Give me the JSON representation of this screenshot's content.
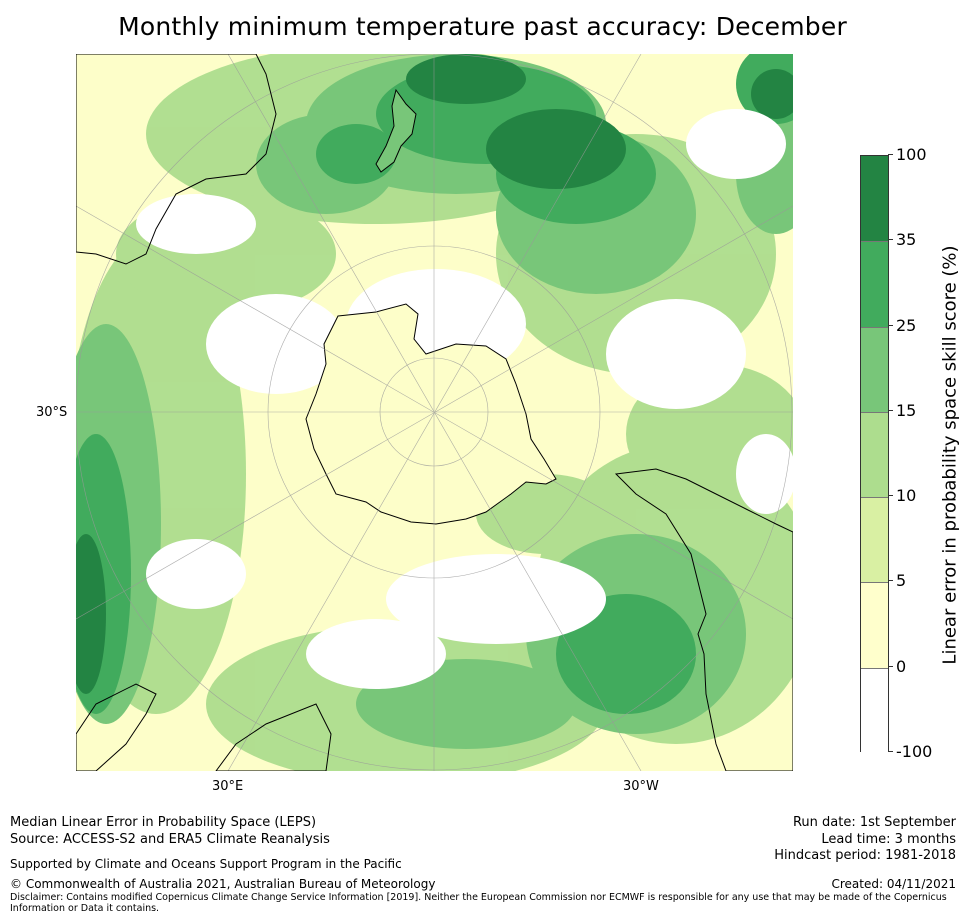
{
  "title": "Monthly minimum temperature past accuracy: December",
  "map": {
    "projection": "south-polar-stereographic",
    "lat_labels": [
      "30°S"
    ],
    "lon_labels": [
      "30°E",
      "30°W"
    ],
    "skill_regions": "green skill shading over Southern Hemisphere oceans; darker greens in Pacific south of New Zealand and South Atlantic; whites/pale yellows around Antarctica"
  },
  "colorbar": {
    "label": "Linear error in probability space skill score (%)",
    "ticks": [
      "100",
      "35",
      "25",
      "15",
      "10",
      "5",
      "0",
      "-100"
    ],
    "colors": [
      "#238443",
      "#41ab5d",
      "#78c679",
      "#addd8e",
      "#d9f0a3",
      "#ffffcc",
      "#ffffff"
    ]
  },
  "footer": {
    "method": "Median Linear Error in Probability Space (LEPS)",
    "source": "Source: ACCESS-S2 and ERA5 Climate Reanalysis",
    "supported": "Supported by Climate and Oceans Support Program in the Pacific",
    "copyright": "© Commonwealth of Australia 2021, Australian Bureau of Meteorology",
    "disclaimer": "Disclaimer: Contains modified Copernicus Climate Change Service Information [2019]. Neither the European Commission nor ECMWF is responsible for any use that may be made of the Copernicus Information or Data it contains.",
    "run_date": "Run date: 1st September",
    "lead_time": "Lead time: 3 months",
    "hindcast": "Hindcast period: 1981-2018",
    "created": "Created: 04/11/2021"
  }
}
